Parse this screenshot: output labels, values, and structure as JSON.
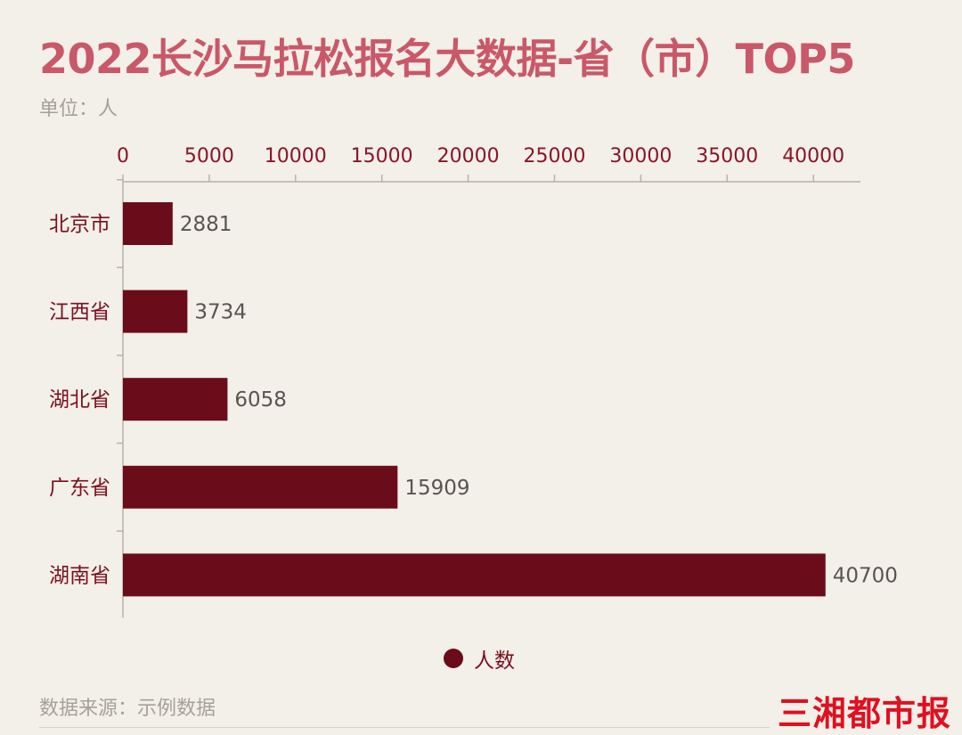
{
  "title": "2022长沙马拉松报名大数据-省（市）TOP5",
  "unit_label": "单位：人",
  "source": "数据来源：示例数据",
  "logo_text": "三湘都市报",
  "colors": {
    "bar": "#6b0c1a",
    "title": "#c95868",
    "tick": "#8a1528",
    "axis": "#b8b2aa",
    "value_label": "#5a5450",
    "category_label": "#7a1020",
    "muted": "#a5a09a",
    "logo": "#e01020"
  },
  "chart_data": {
    "type": "bar",
    "orientation": "horizontal",
    "categories": [
      "北京市",
      "江西省",
      "湖北省",
      "广东省",
      "湖南省"
    ],
    "series": [
      {
        "name": "人数",
        "values": [
          2881,
          3734,
          6058,
          15909,
          40700
        ]
      }
    ],
    "xlim": [
      0,
      42000
    ],
    "x_ticks": [
      "0",
      "5000",
      "10000",
      "15000",
      "20000",
      "25000",
      "30000",
      "35000",
      "40000"
    ],
    "x_axis_position": "top",
    "legend": "bottom-center",
    "grid": false
  }
}
